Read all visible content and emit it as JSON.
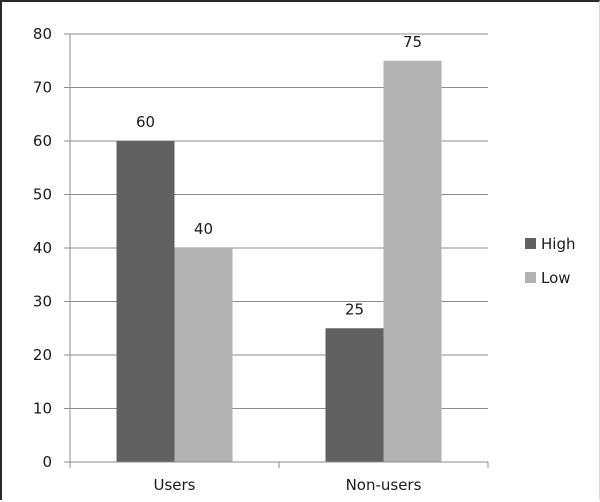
{
  "chart_data": {
    "type": "bar",
    "categories": [
      "Users",
      "Non-users"
    ],
    "series": [
      {
        "name": "High",
        "values": [
          60,
          25
        ],
        "color": "#616161"
      },
      {
        "name": "Low",
        "values": [
          40,
          75
        ],
        "color": "#b2b2b2"
      }
    ],
    "ylim": [
      0,
      80
    ],
    "yticks": [
      0,
      10,
      20,
      30,
      40,
      50,
      60,
      70,
      80
    ],
    "grid": true,
    "grid_color": "#8c8c8c",
    "legend_position": "right",
    "data_labels": true,
    "title": "",
    "xlabel": "",
    "ylabel": ""
  }
}
